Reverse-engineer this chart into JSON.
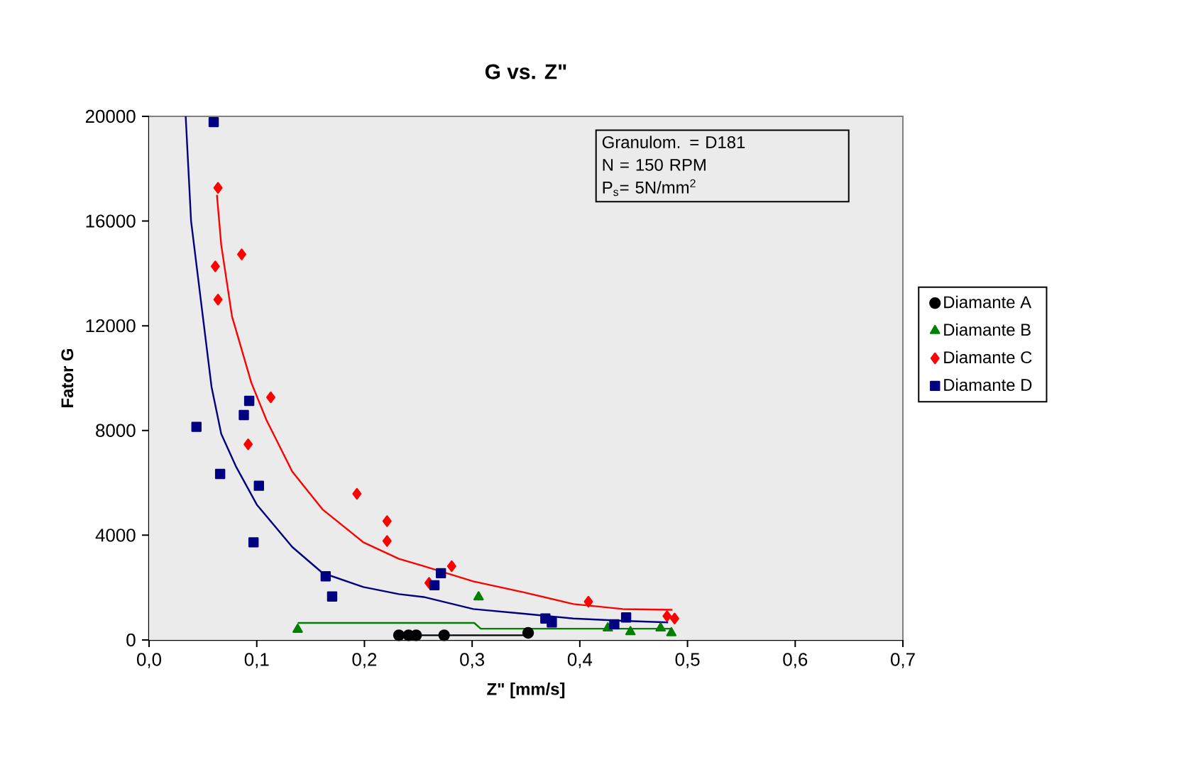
{
  "chart_data": {
    "type": "scatter",
    "title": "G vs. Z\"",
    "xlabel": "Z\" [mm/s]",
    "ylabel": "Fator G",
    "xlim": [
      0,
      0.7
    ],
    "ylim": [
      0,
      20000
    ],
    "xticks": [
      {
        "value": 0,
        "label": "0,0"
      },
      {
        "value": 0.1,
        "label": "0,1"
      },
      {
        "value": 0.2,
        "label": "0,2"
      },
      {
        "value": 0.3,
        "label": "0,3"
      },
      {
        "value": 0.4,
        "label": "0,4"
      },
      {
        "value": 0.5,
        "label": "0,5"
      },
      {
        "value": 0.6,
        "label": "0,6"
      },
      {
        "value": 0.7,
        "label": "0,7"
      }
    ],
    "yticks": [
      0,
      4000,
      8000,
      12000,
      16000,
      20000
    ],
    "legend": "right",
    "annotations": [
      "Granulom. = D181",
      "N = 150 RPM",
      "P$_{s}$= 5N/mm$^{2}$"
    ],
    "series": [
      {
        "name": "Diamante A",
        "marker": "circle",
        "color": "#000000",
        "x": [
          0.232,
          0.241,
          0.248,
          0.274,
          0.352
        ],
        "values": [
          180,
          180,
          180,
          180,
          270
        ]
      },
      {
        "name": "Diamante B",
        "marker": "triangle",
        "color": "#008000",
        "x": [
          0.138,
          0.306,
          0.426,
          0.447,
          0.475,
          0.485
        ],
        "values": [
          400,
          1640,
          450,
          310,
          450,
          270
        ]
      },
      {
        "name": "Diamante C",
        "marker": "diamond",
        "color": "#ff0000",
        "x": [
          0.064,
          0.086,
          0.0615,
          0.064,
          0.113,
          0.092,
          0.193,
          0.221,
          0.221,
          0.281,
          0.26,
          0.408,
          0.481,
          0.488
        ],
        "values": [
          17270,
          14730,
          14270,
          13000,
          9270,
          7470,
          5580,
          4540,
          3780,
          2820,
          2180,
          1460,
          910,
          820
        ]
      },
      {
        "name": "Diamante D",
        "marker": "square",
        "color": "#000080",
        "x": [
          0.06,
          0.044,
          0.093,
          0.088,
          0.066,
          0.102,
          0.097,
          0.164,
          0.17,
          0.271,
          0.265,
          0.368,
          0.374,
          0.443,
          0.432
        ],
        "values": [
          19780,
          8140,
          9130,
          8590,
          6340,
          5890,
          3730,
          2430,
          1660,
          2550,
          2090,
          820,
          670,
          860,
          600
        ]
      },
      {
        "type": "line",
        "marker": "none",
        "line_style": "solid",
        "color": "#000000",
        "x": [
          0.232,
          0.352
        ],
        "values": [
          180,
          180
        ]
      },
      {
        "type": "line",
        "marker": "none",
        "line_style": "solid",
        "color": "#008000",
        "x": [
          0.138,
          0.302,
          0.308,
          0.485
        ],
        "values": [
          650,
          650,
          430,
          430
        ]
      },
      {
        "type": "line",
        "marker": "none",
        "line_style": "solid",
        "color": "#ff0000",
        "x": [
          0.063,
          0.067,
          0.077,
          0.095,
          0.109,
          0.133,
          0.161,
          0.199,
          0.232,
          0.255,
          0.301,
          0.348,
          0.394,
          0.44,
          0.486
        ],
        "values": [
          17000,
          15090,
          12360,
          9820,
          8400,
          6430,
          4990,
          3730,
          3100,
          2820,
          2240,
          1820,
          1370,
          1180,
          1150
        ]
      },
      {
        "type": "line",
        "marker": "none",
        "line_style": "solid",
        "color": "#000080",
        "x": [
          0.034,
          0.039,
          0.051,
          0.058,
          0.067,
          0.081,
          0.1,
          0.133,
          0.161,
          0.199,
          0.232,
          0.255,
          0.301,
          0.348,
          0.394,
          0.44,
          0.482
        ],
        "values": [
          20000,
          16000,
          12000,
          9670,
          7870,
          6600,
          5170,
          3550,
          2560,
          2020,
          1750,
          1640,
          1180,
          1000,
          820,
          730,
          670
        ]
      }
    ]
  }
}
